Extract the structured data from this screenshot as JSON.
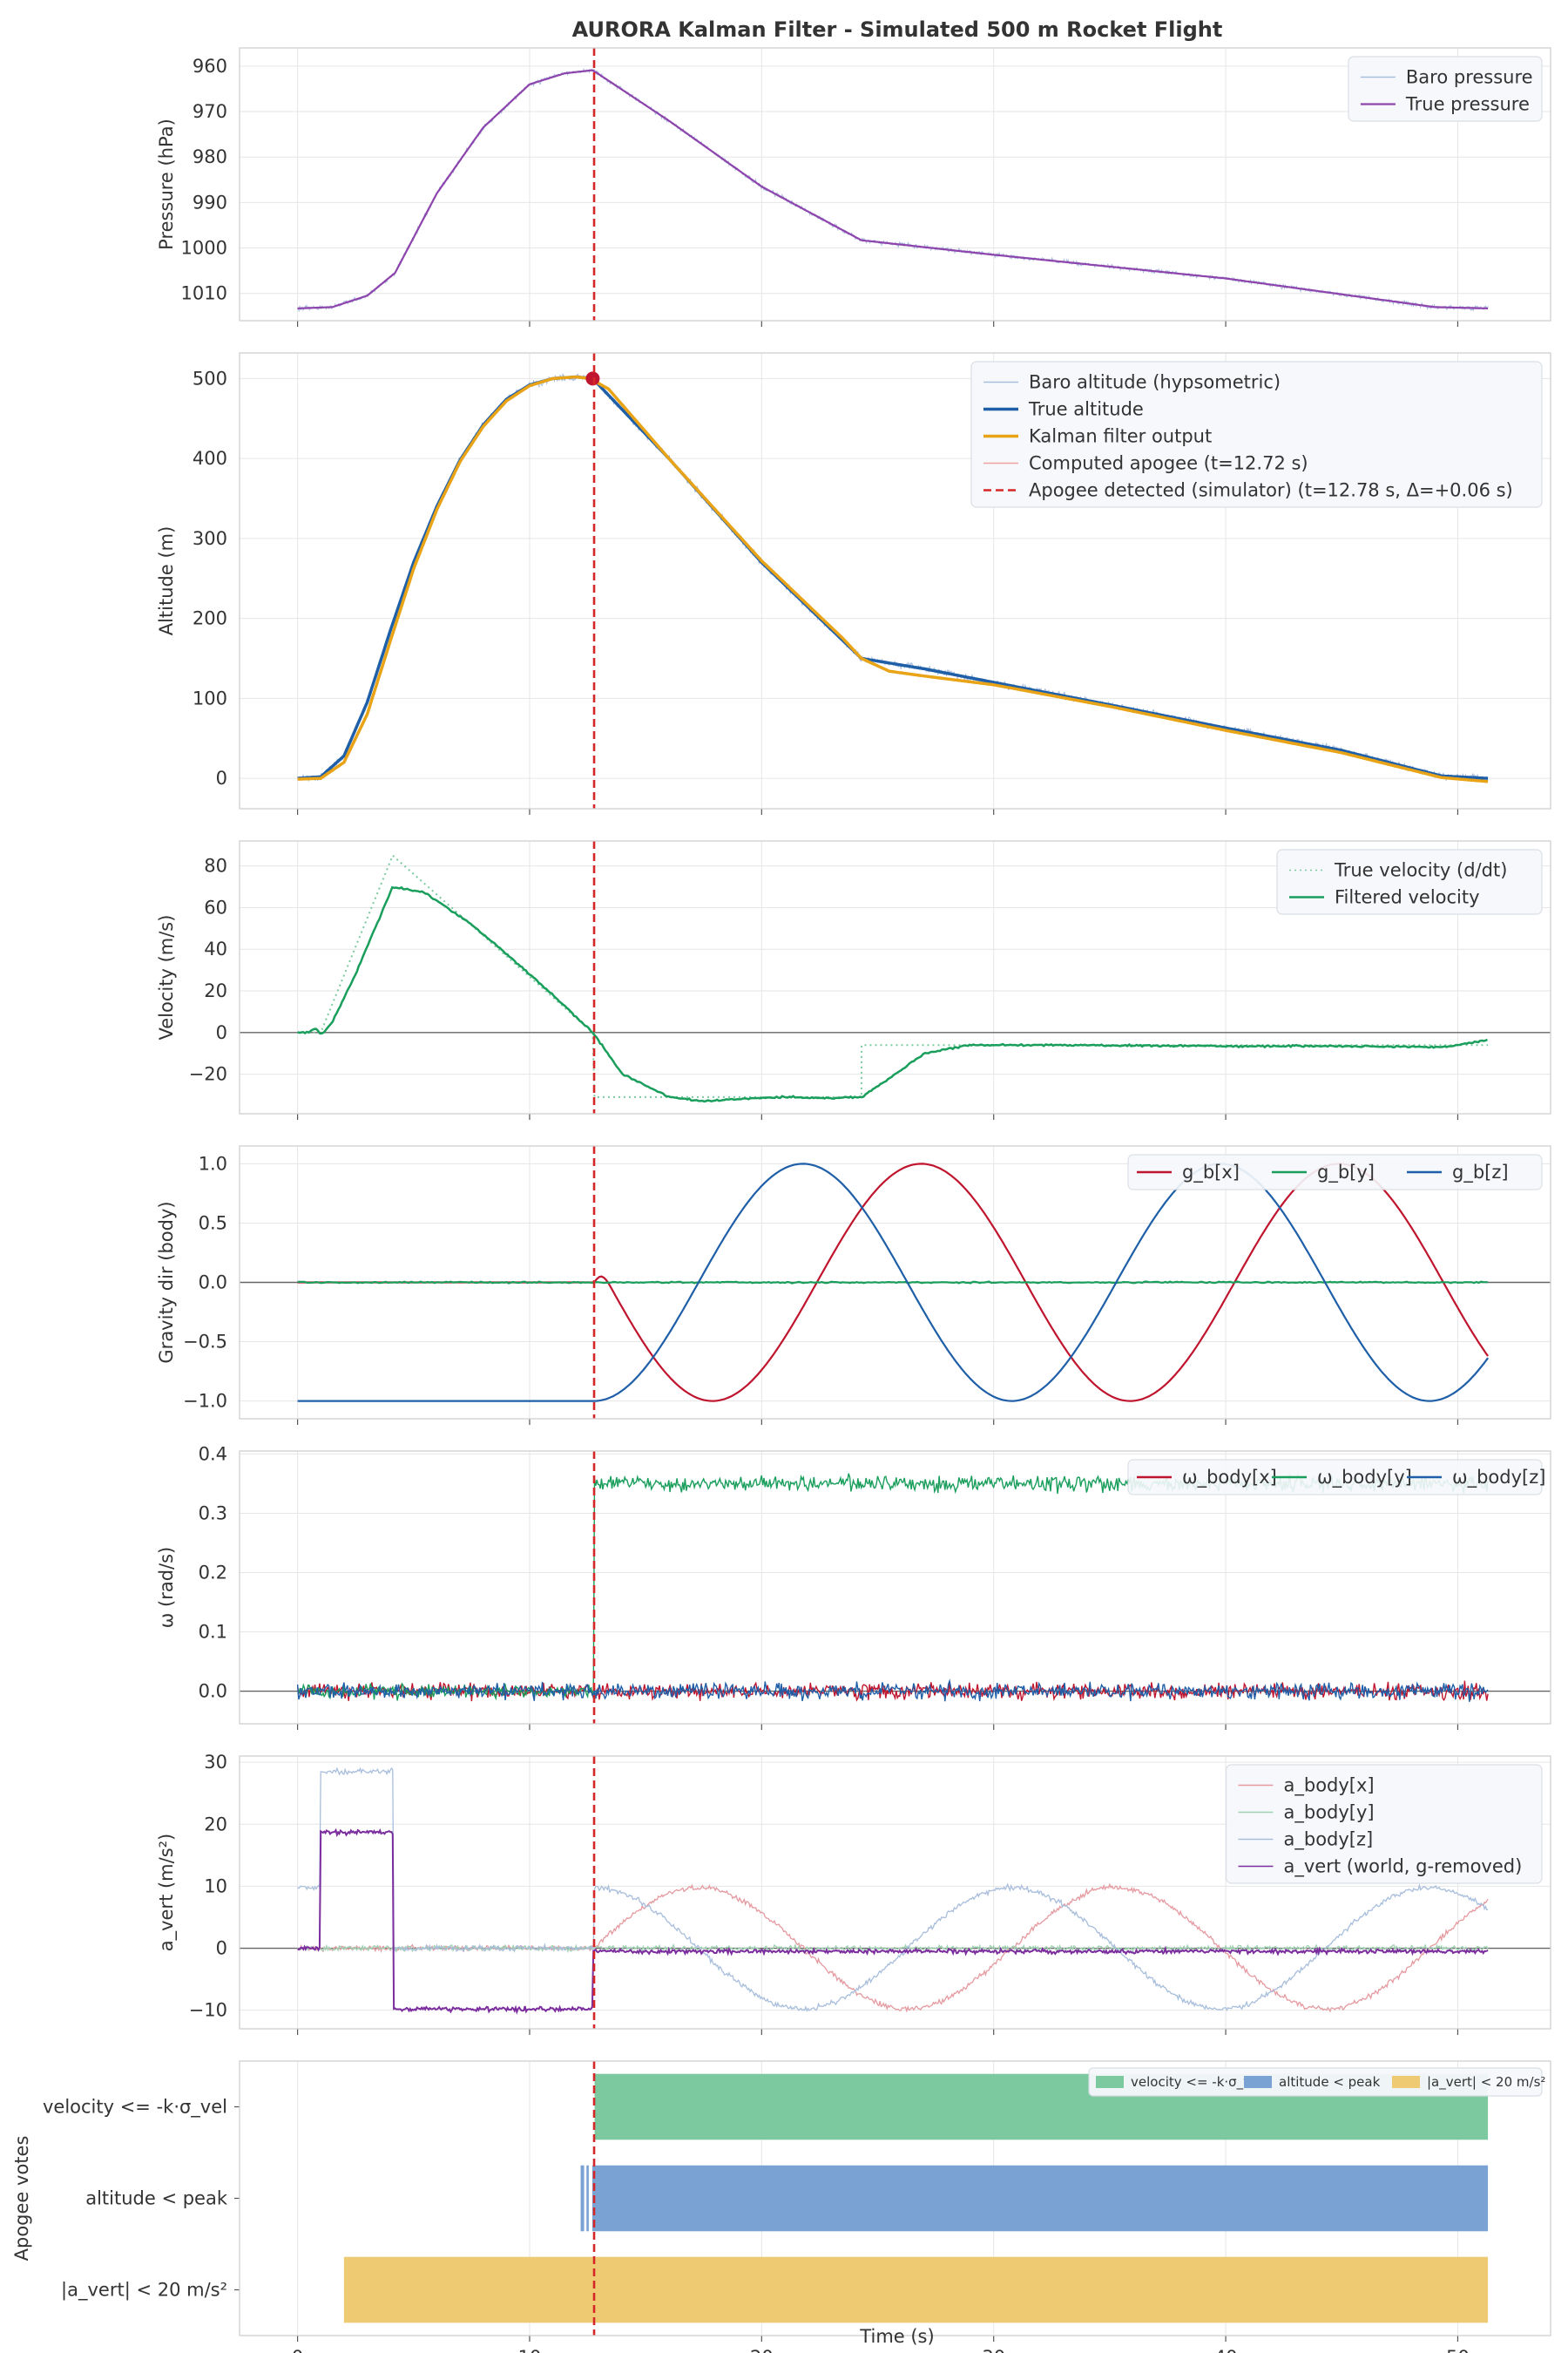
{
  "chart_data": {
    "type": "line",
    "title": "AURORA Kalman Filter - Simulated 500 m Rocket Flight",
    "title_color": "#1f5fa8",
    "xlabel": "Time (s)",
    "xlim": [
      -2.5,
      54
    ],
    "xticks": [
      0,
      10,
      20,
      30,
      40,
      50
    ],
    "apogee_marker_t": 12.78,
    "apogee_line_color": "#d62728",
    "panels": [
      {
        "id": "pressure",
        "ylabel": "Pressure (hPa)",
        "ylim": [
          1016,
          956
        ],
        "yticks": [
          "960",
          "970",
          "980",
          "990",
          "1000",
          "1010"
        ],
        "ytick_values": [
          960,
          970,
          980,
          990,
          1000,
          1010
        ],
        "series": [
          {
            "name": "Baro pressure",
            "color": "#a8bedc",
            "style": "noisy-thin",
            "noise": 0.35
          },
          {
            "name": "True pressure",
            "color": "#8e44ad",
            "style": "solid",
            "width": 2.2,
            "x": [
              0,
              1.5,
              3,
              4.2,
              6,
              8,
              10,
              11.5,
              12.72,
              16,
              20,
              24.3,
              30,
              40,
              49,
              51.3
            ],
            "y": [
              1013.3,
              1013,
              1010.5,
              1005.5,
              988,
              973.5,
              964,
              961.6,
              960.9,
              972,
              986.5,
              998.3,
              1001.5,
              1006.7,
              1013,
              1013.3
            ]
          }
        ],
        "legend": [
          "Baro pressure",
          "True pressure"
        ]
      },
      {
        "id": "altitude",
        "ylabel": "Altitude (m)",
        "ylim": [
          -38,
          532
        ],
        "yticks": [
          "0",
          "100",
          "200",
          "300",
          "400",
          "500"
        ],
        "ytick_values": [
          0,
          100,
          200,
          300,
          400,
          500
        ],
        "series": [
          {
            "name": "Baro altitude (hypsometric)",
            "color": "#a8bedc",
            "style": "noisy-thin",
            "noise": 3
          },
          {
            "name": "True altitude",
            "color": "#1f5fa8",
            "style": "solid",
            "width": 3.5,
            "x": [
              0,
              1,
              2,
              3,
              4,
              5,
              6,
              7,
              8,
              9,
              10,
              11,
              12,
              12.72,
              16,
              20,
              24.3,
              27,
              30,
              35,
              40,
              45,
              49.3,
              51.3
            ],
            "y": [
              0,
              2,
              28,
              95,
              185,
              270,
              340,
              398,
              442,
              474,
              492,
              500,
              502,
              500,
              400,
              270,
              150,
              137,
              120,
              92,
              63,
              35,
              3,
              0
            ]
          },
          {
            "name": "Kalman filter output",
            "color": "#e8a317",
            "style": "solid",
            "width": 3.5,
            "x": [
              0,
              1,
              2,
              3,
              4,
              5,
              6,
              7,
              8,
              9,
              10,
              11,
              12,
              12.6,
              13.4,
              16,
              20,
              23.5,
              24.3,
              25.5,
              27,
              30,
              35,
              40,
              45,
              49.3,
              51.3
            ],
            "y": [
              -1,
              0,
              20,
              80,
              172,
              262,
              336,
              396,
              440,
              472,
              491,
              500,
              502,
              500,
              487,
              400,
              272,
              175,
              150,
              134,
              128,
              117,
              90,
              60,
              32,
              1,
              -4
            ]
          },
          {
            "name": "Computed apogee (t=12.72 s)",
            "color": "#f2a1a1",
            "style": "thin"
          },
          {
            "name": "Apogee detected (simulator) (t=12.78 s, Δ=+0.06 s)",
            "color": "#d62728",
            "style": "dashed"
          }
        ],
        "apogee_point": {
          "t": 12.72,
          "altitude": 500
        },
        "legend": [
          "Baro altitude (hypsometric)",
          "True altitude",
          "Kalman filter output",
          "Computed apogee (t=12.72 s)",
          "Apogee detected (simulator) (t=12.78 s, Δ=+0.06 s)"
        ]
      },
      {
        "id": "velocity",
        "ylabel": "Velocity (m/s)",
        "ylim": [
          -39,
          92
        ],
        "yticks": [
          "80",
          "60",
          "40",
          "20",
          "0",
          "−20"
        ],
        "ytick_values": [
          80,
          60,
          40,
          20,
          0,
          -20
        ],
        "series": [
          {
            "name": "True velocity (d/dt)",
            "color": "#7ccaa0",
            "style": "dotted",
            "x": [
              0,
              1,
              4.1,
              12.72,
              12.8,
              24.3,
              24.31,
              51.3
            ],
            "y": [
              0,
              0,
              85,
              0,
              -31,
              -31,
              -6,
              -6
            ]
          },
          {
            "name": "Filtered velocity",
            "color": "#1a9e5c",
            "style": "solid",
            "width": 2.5,
            "x": [
              0,
              0.5,
              0.8,
              1.0,
              1.2,
              1.5,
              2.5,
              4.1,
              5.5,
              7.5,
              9.5,
              11.5,
              12.72,
              14,
              16,
              17.5,
              19,
              21,
              23,
              24.3,
              25.5,
              27,
              29,
              32,
              40,
              45,
              49.5,
              51.3
            ],
            "y": [
              0,
              0,
              2,
              -1,
              1,
              5,
              28,
              70,
              67,
              52,
              33,
              13,
              0,
              -20,
              -31,
              -33,
              -32,
              -31,
              -31.5,
              -31,
              -22,
              -10,
              -6,
              -6,
              -6.5,
              -6.5,
              -7,
              -3.5
            ]
          }
        ],
        "zero_line": true,
        "legend": [
          "True velocity (d/dt)",
          "Filtered velocity"
        ]
      },
      {
        "id": "gravity",
        "ylabel": "Gravity dir (body)",
        "ylim": [
          -1.15,
          1.15
        ],
        "yticks": [
          "1.0",
          "0.5",
          "0.0",
          "−0.5",
          "−1.0"
        ],
        "ytick_values": [
          1,
          0.5,
          0,
          -0.5,
          -1
        ],
        "series": [
          {
            "name": "g_b[x]",
            "color": "#c0152e",
            "style": "osc-x",
            "period": 18
          },
          {
            "name": "g_b[y]",
            "color": "#1a9e5c",
            "style": "near-zero"
          },
          {
            "name": "g_b[z]",
            "color": "#1f5fa8",
            "style": "osc-z",
            "period": 18
          }
        ],
        "zero_line": true,
        "legend": [
          "g_b[x]",
          "g_b[y]",
          "g_b[z]"
        ]
      },
      {
        "id": "omega",
        "ylabel": "ω (rad/s)",
        "ylim": [
          -0.055,
          0.405
        ],
        "yticks": [
          "0.4",
          "0.3",
          "0.2",
          "0.1",
          "0.0"
        ],
        "ytick_values": [
          0.4,
          0.3,
          0.2,
          0.1,
          0
        ],
        "series": [
          {
            "name": "ω_body[x]",
            "color": "#c0152e",
            "style": "noise",
            "level": 0
          },
          {
            "name": "ω_body[y]",
            "color": "#1a9e5c",
            "style": "step-noise",
            "level_after": 0.35
          },
          {
            "name": "ω_body[z]",
            "color": "#1f5fa8",
            "style": "noise",
            "level": 0
          }
        ],
        "zero_line": true,
        "legend": [
          "ω_body[x]",
          "ω_body[y]",
          "ω_body[z]"
        ]
      },
      {
        "id": "accel",
        "ylabel": "a_vert (m/s²)",
        "ylim": [
          -13,
          31
        ],
        "yticks": [
          "30",
          "20",
          "10",
          "0",
          "−10"
        ],
        "ytick_values": [
          30,
          20,
          10,
          0,
          -10
        ],
        "series": [
          {
            "name": "a_body[x]",
            "color": "#e59aa0",
            "style": "noisy-osc-x"
          },
          {
            "name": "a_body[y]",
            "color": "#9fd2b2",
            "style": "noisy-flat"
          },
          {
            "name": "a_body[z]",
            "color": "#a8bedc",
            "style": "noisy-osc-z",
            "phases": [
              {
                "t0": 0,
                "t1": 1,
                "v": 9.8
              },
              {
                "t0": 1,
                "t1": 4.1,
                "v": 28.5
              },
              {
                "t0": 4.1,
                "t1": 12.72,
                "v": 0
              }
            ]
          },
          {
            "name": "a_vert (world, g-removed)",
            "color": "#7b2d9e",
            "style": "step",
            "phases": [
              {
                "t0": 0,
                "t1": 1,
                "v": 0
              },
              {
                "t0": 1,
                "t1": 4.1,
                "v": 18.7
              },
              {
                "t0": 4.1,
                "t1": 12.72,
                "v": -9.8
              },
              {
                "t0": 12.72,
                "t1": 51.3,
                "v": -0.5
              }
            ]
          }
        ],
        "zero_line": true,
        "legend": [
          "a_body[x]",
          "a_body[y]",
          "a_body[z]",
          "a_vert (world, g-removed)"
        ]
      },
      {
        "id": "votes",
        "type": "broken-bar",
        "ylabel": "Apogee votes",
        "categories": [
          "velocity <= -k·σ_vel",
          "altitude < peak",
          "|a_vert| < 20 m/s²"
        ],
        "bars": [
          {
            "category": "velocity <= -k·σ_vel",
            "color": "#7cc9a0",
            "spans": [
              [
                12.8,
                51.3
              ]
            ]
          },
          {
            "category": "altitude < peak",
            "color": "#7aa3d4",
            "spans": [
              [
                12.2,
                12.35
              ],
              [
                12.45,
                12.55
              ],
              [
                12.7,
                51.3
              ]
            ]
          },
          {
            "category": "|a_vert| < 20 m/s²",
            "color": "#eecb72",
            "spans": [
              [
                2.0,
                51.3
              ]
            ]
          }
        ],
        "legend": [
          "velocity <= -k·σ_vel",
          "altitude < peak",
          "|a_vert| < 20 m/s²"
        ]
      }
    ]
  }
}
